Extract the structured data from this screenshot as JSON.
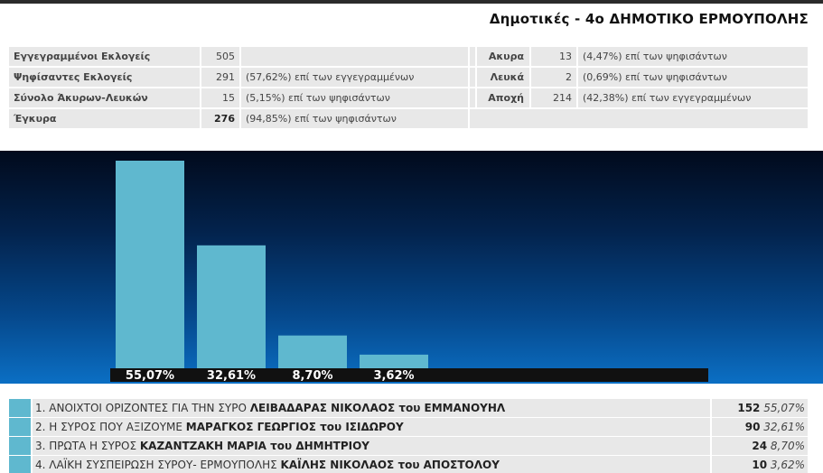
{
  "title": "Δημοτικές - 4ο ΔΗΜΟΤΙΚΟ ΕΡΜΟΥΠΟΛΗΣ",
  "stats": {
    "registered": {
      "label": "Εγγεγραμμένοι Εκλογείς",
      "value": "505",
      "pct": ""
    },
    "voted": {
      "label": "Ψηφίσαντες Εκλογείς",
      "value": "291",
      "pct": "(57,62%) επί των εγγεγραμμένων"
    },
    "invalid_blank": {
      "label": "Σύνολο Άκυρων-Λευκών",
      "value": "15",
      "pct": "(5,15%) επί των ψηφισάντων"
    },
    "valid": {
      "label": "Έγκυρα",
      "value": "276",
      "pct": "(94,85%) επί των ψηφισάντων"
    },
    "invalid": {
      "label": "Ακυρα",
      "value": "13",
      "pct": "(4,47%) επί των ψηφισάντων"
    },
    "blank": {
      "label": "Λευκά",
      "value": "2",
      "pct": "(0,69%) επί των ψηφισάντων"
    },
    "abstention": {
      "label": "Αποχή",
      "value": "214",
      "pct": "(42,38%) επί των εγγεγραμμένων"
    }
  },
  "colors": {
    "bar": "#5fb8cf",
    "label_strip": "#111111"
  },
  "chart_data": {
    "type": "bar",
    "categories": [
      "1",
      "2",
      "3",
      "4"
    ],
    "values": [
      55.07,
      32.61,
      8.7,
      3.62
    ],
    "labels": [
      "55,07%",
      "32,61%",
      "8,70%",
      "3,62%"
    ],
    "ylim": [
      0,
      60
    ],
    "title": "",
    "xlabel": "",
    "ylabel": ""
  },
  "results": [
    {
      "prefix": "1. ΑΝΟΙΧΤΟΙ ΟΡΙΖΟΝΤΕΣ ΓΙΑ ΤΗΝ ΣΥΡΟ ",
      "candidate": "ΛΕΙΒΑΔΑΡΑΣ ΝΙΚΟΛΑΟΣ",
      "suffix": " του ΕΜΜΑΝΟΥΗΛ",
      "votes": "152",
      "pct": "55,07%"
    },
    {
      "prefix": "2. Η ΣΥΡΟΣ ΠΟΥ ΑΞΙΖΟΥΜΕ ",
      "candidate": "ΜΑΡΑΓΚΟΣ ΓΕΩΡΓΙΟΣ",
      "suffix": " του ΙΣΙΔΩΡΟΥ",
      "votes": "90",
      "pct": "32,61%"
    },
    {
      "prefix": "3. ΠΡΩΤΑ Η ΣΥΡΟΣ ",
      "candidate": "ΚΑΖΑΝΤΖΑΚΗ ΜΑΡΙΑ",
      "suffix": " του ΔΗΜΗΤΡΙΟΥ",
      "votes": "24",
      "pct": "8,70%"
    },
    {
      "prefix": "4. ΛΑΪΚΗ ΣΥΣΠΕΙΡΩΣΗ ΣΥΡΟΥ- ΕΡΜΟΥΠΟΛΗΣ ",
      "candidate": "ΚΑΪΛΗΣ ΝΙΚΟΛΑΟΣ",
      "suffix": " του ΑΠΟΣΤΟΛΟΥ",
      "votes": "10",
      "pct": "3,62%"
    }
  ]
}
